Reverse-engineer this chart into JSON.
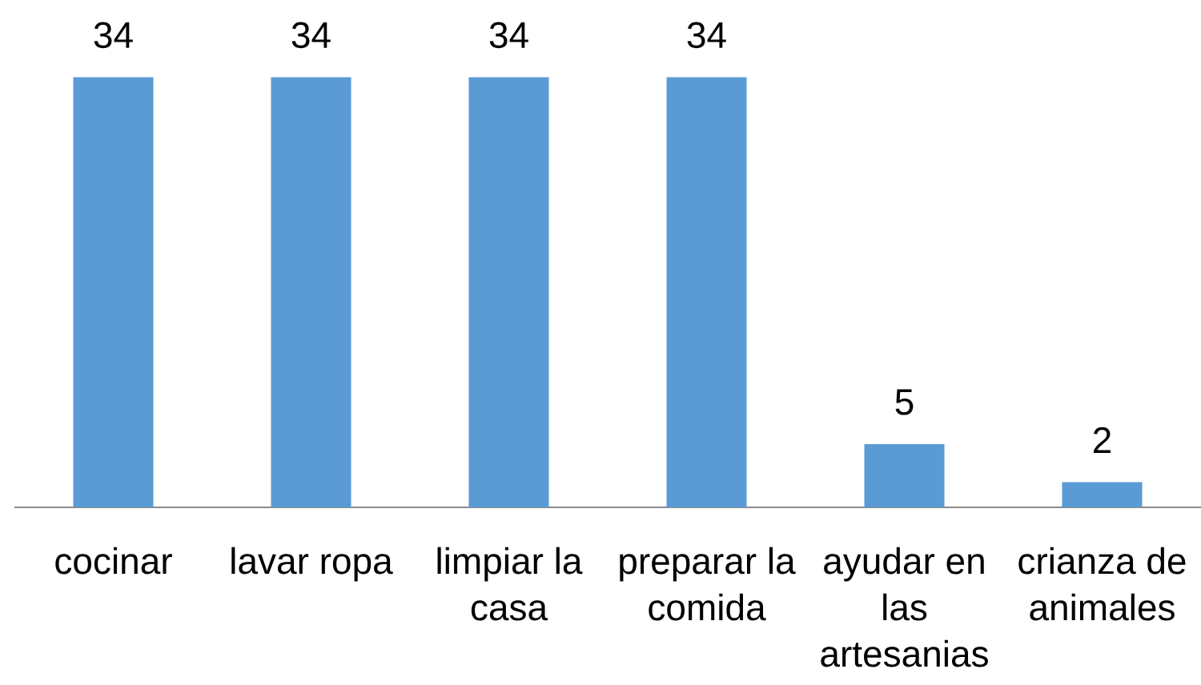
{
  "chart_data": {
    "type": "bar",
    "categories": [
      "cocinar",
      "lavar ropa",
      "limpiar la casa",
      "preparar la comida",
      "ayudar en las artesanias",
      "crianza de animales"
    ],
    "values": [
      34,
      34,
      34,
      34,
      5,
      2
    ],
    "color": "#5b9bd5",
    "data_labels": true
  }
}
